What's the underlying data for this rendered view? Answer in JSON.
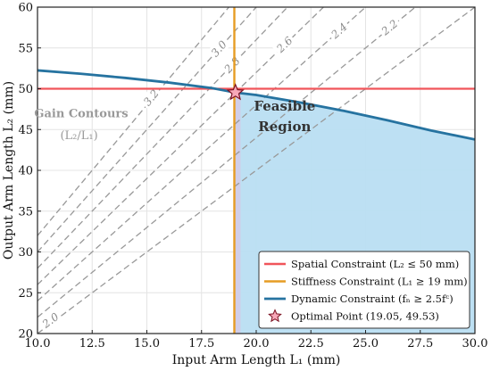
{
  "chart_data": {
    "type": "line",
    "xlabel": "Input Arm Length L₁ (mm)",
    "ylabel": "Output Arm Length L₂ (mm)",
    "xlim": [
      10,
      30
    ],
    "ylim": [
      20,
      60
    ],
    "xticks": [
      "10.0",
      "12.5",
      "15.0",
      "17.5",
      "20.0",
      "22.5",
      "25.0",
      "27.5",
      "30.0"
    ],
    "yticks": [
      "20",
      "25",
      "30",
      "35",
      "40",
      "45",
      "50",
      "55",
      "60"
    ],
    "grid": true,
    "legend_position": "bottom-right",
    "contours": {
      "title": "Gain Contours",
      "subtitle": "(L₂/L₁)",
      "ratios": [
        2.0,
        2.2,
        2.4,
        2.6,
        2.8,
        3.0,
        3.2
      ],
      "labels": [
        "2.0",
        "2.2",
        "2.4",
        "2.6",
        "2.8",
        "3.0",
        "3.2"
      ],
      "line_color": "#999999"
    },
    "feasible_region": {
      "label_line1": "Feasible",
      "label_line2": "Region",
      "color": "#b9def2"
    },
    "constraints": [
      {
        "kind": "horizontal",
        "y": 50,
        "color": "#f0555a"
      },
      {
        "kind": "vertical",
        "x": 19,
        "color": "#e69c24"
      },
      {
        "kind": "curve",
        "color": "#2673a0",
        "x": [
          10,
          12,
          14,
          16,
          18,
          19.05,
          20,
          22,
          24,
          26,
          28,
          30
        ],
        "y": [
          52.25,
          51.83,
          51.33,
          50.76,
          50.07,
          49.53,
          49.23,
          48.32,
          47.29,
          46.14,
          44.88,
          43.78
        ]
      }
    ],
    "optimal_point": {
      "x": 19.05,
      "y": 49.53,
      "color": "#f7a8b8"
    },
    "legend": [
      {
        "label": "Spatial Constraint (L₂ ≤ 50 mm)",
        "color": "#f0555a"
      },
      {
        "label": "Stiffness Constraint (L₁ ≥ 19 mm)",
        "color": "#e69c24"
      },
      {
        "label": "Dynamic Constraint (fₙ ≥ 2.5fᶜ)",
        "color": "#2673a0"
      },
      {
        "label": "Optimal Point (19.05, 49.53)",
        "color": "#f7a8b8"
      }
    ]
  }
}
